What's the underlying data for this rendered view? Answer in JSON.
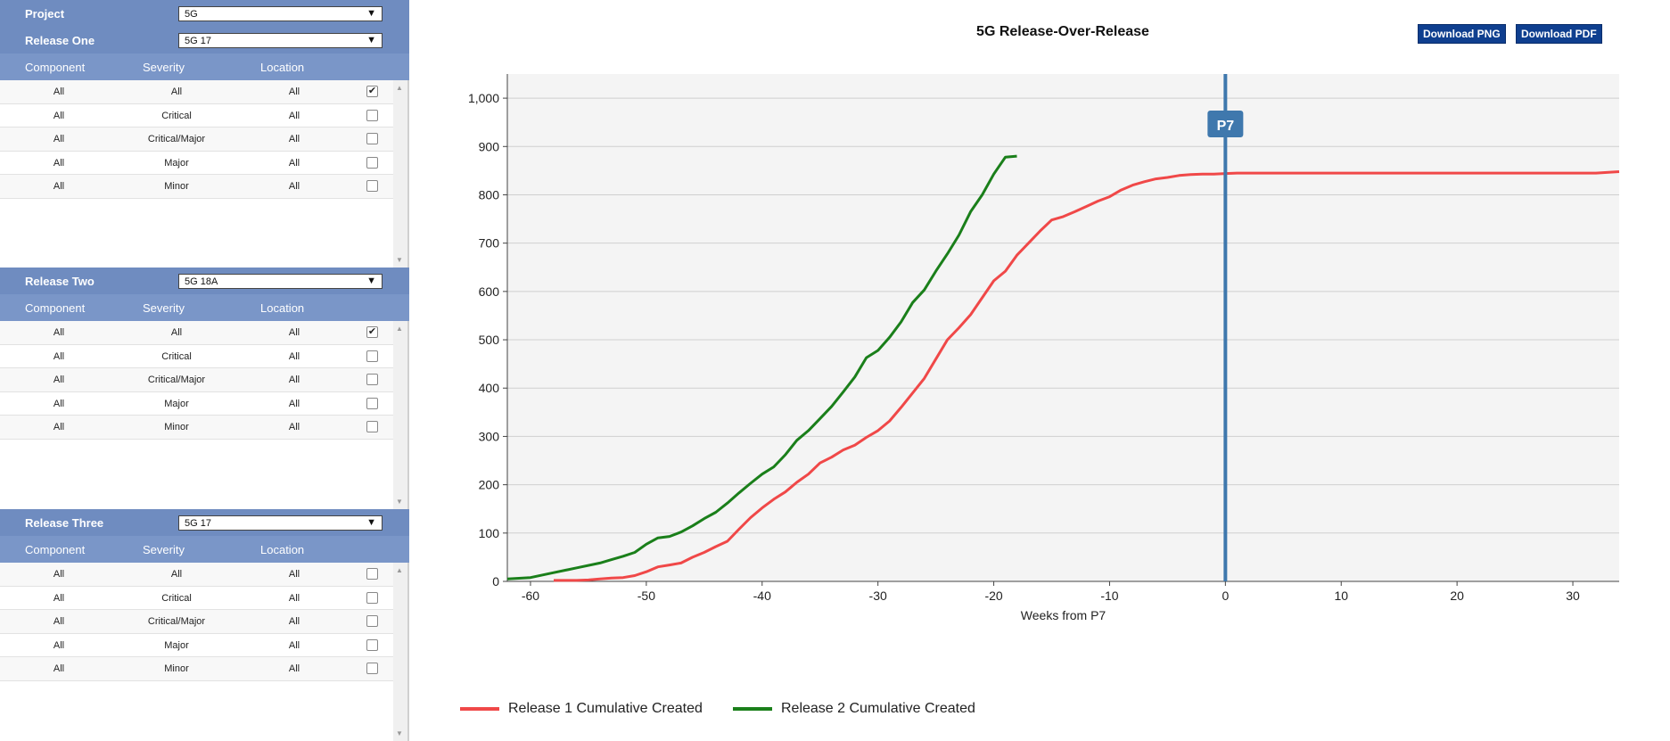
{
  "panel": {
    "project_label": "Project",
    "project_value": "5G",
    "arrow": "▼",
    "sections": [
      {
        "label": "Release One",
        "value": "5G 17",
        "columns": [
          "Component",
          "Severity",
          "Location"
        ],
        "rows": [
          {
            "component": "All",
            "severity": "All",
            "location": "All",
            "checked": true
          },
          {
            "component": "All",
            "severity": "Critical",
            "location": "All",
            "checked": false
          },
          {
            "component": "All",
            "severity": "Critical/Major",
            "location": "All",
            "checked": false
          },
          {
            "component": "All",
            "severity": "Major",
            "location": "All",
            "checked": false
          },
          {
            "component": "All",
            "severity": "Minor",
            "location": "All",
            "checked": false
          }
        ]
      },
      {
        "label": "Release Two",
        "value": "5G 18A",
        "columns": [
          "Component",
          "Severity",
          "Location"
        ],
        "rows": [
          {
            "component": "All",
            "severity": "All",
            "location": "All",
            "checked": true
          },
          {
            "component": "All",
            "severity": "Critical",
            "location": "All",
            "checked": false
          },
          {
            "component": "All",
            "severity": "Critical/Major",
            "location": "All",
            "checked": false
          },
          {
            "component": "All",
            "severity": "Major",
            "location": "All",
            "checked": false
          },
          {
            "component": "All",
            "severity": "Minor",
            "location": "All",
            "checked": false
          }
        ]
      },
      {
        "label": "Release Three",
        "value": "5G 17",
        "columns": [
          "Component",
          "Severity",
          "Location"
        ],
        "rows": [
          {
            "component": "All",
            "severity": "All",
            "location": "All",
            "checked": false
          },
          {
            "component": "All",
            "severity": "Critical",
            "location": "All",
            "checked": false
          },
          {
            "component": "All",
            "severity": "Critical/Major",
            "location": "All",
            "checked": false
          },
          {
            "component": "All",
            "severity": "Major",
            "location": "All",
            "checked": false
          },
          {
            "component": "All",
            "severity": "Minor",
            "location": "All",
            "checked": false
          }
        ]
      }
    ]
  },
  "buttons": {
    "download_png": "Download PNG",
    "download_pdf": "Download PDF"
  },
  "colors": {
    "header_bg": "#6f8cc0",
    "button_bg": "#0f3f8f",
    "release1": "#f04848",
    "release2": "#1a7f1a",
    "marker": "#3f78ad"
  },
  "chart_data": {
    "type": "line",
    "title": "5G Release-Over-Release",
    "xlabel": "Weeks from P7",
    "ylabel": "",
    "xlim": [
      -62,
      34
    ],
    "ylim": [
      0,
      1050
    ],
    "xticks": [
      -60,
      -50,
      -40,
      -30,
      -20,
      -10,
      0,
      10,
      20,
      30
    ],
    "yticks": [
      0,
      100,
      200,
      300,
      400,
      500,
      600,
      700,
      800,
      900,
      1000
    ],
    "ytick_labels": [
      "0",
      "100",
      "200",
      "300",
      "400",
      "500",
      "600",
      "700",
      "800",
      "900",
      "1,000"
    ],
    "grid": true,
    "legend_position": "bottom-left",
    "marker_line": {
      "x": 0,
      "label": "P7"
    },
    "series": [
      {
        "name": "Release 1 Cumulative Created",
        "color": "#f04848",
        "x": [
          -58,
          -56,
          -55,
          -54,
          -53,
          -52,
          -51,
          -50,
          -49,
          -48,
          -47,
          -46,
          -45,
          -44,
          -43,
          -42,
          -41,
          -40,
          -39,
          -38,
          -37,
          -36,
          -35,
          -34,
          -33,
          -32,
          -31,
          -30,
          -29,
          -28,
          -27,
          -26,
          -25,
          -24,
          -23,
          -22,
          -21,
          -20,
          -19,
          -18,
          -17,
          -16,
          -15,
          -14,
          -13,
          -12,
          -11,
          -10,
          -9,
          -8,
          -7,
          -6,
          -5,
          -4,
          -3,
          -2,
          -1,
          0,
          1,
          5,
          10,
          20,
          30,
          32,
          34
        ],
        "y": [
          2,
          2,
          3,
          5,
          7,
          8,
          12,
          20,
          30,
          34,
          38,
          50,
          60,
          72,
          83,
          108,
          132,
          152,
          170,
          185,
          205,
          222,
          245,
          257,
          272,
          282,
          298,
          312,
          332,
          360,
          390,
          420,
          460,
          500,
          525,
          552,
          587,
          622,
          642,
          675,
          700,
          725,
          748,
          755,
          765,
          776,
          787,
          796,
          810,
          820,
          827,
          833,
          836,
          840,
          842,
          843,
          843,
          844,
          845,
          845,
          845,
          845,
          845,
          845,
          848
        ]
      },
      {
        "name": "Release 2 Cumulative Created",
        "color": "#1a7f1a",
        "x": [
          -62,
          -60,
          -58,
          -56,
          -54,
          -53,
          -52,
          -51,
          -50,
          -49,
          -48,
          -47,
          -46,
          -45,
          -44,
          -43,
          -42,
          -41,
          -40,
          -39,
          -38,
          -37,
          -36,
          -35,
          -34,
          -33,
          -32,
          -31,
          -30,
          -29,
          -28,
          -27,
          -26,
          -25,
          -24,
          -23,
          -22,
          -21,
          -20,
          -19,
          -18
        ],
        "y": [
          5,
          8,
          18,
          28,
          38,
          45,
          52,
          60,
          77,
          90,
          93,
          102,
          115,
          130,
          143,
          162,
          183,
          203,
          222,
          237,
          262,
          292,
          312,
          337,
          362,
          392,
          423,
          463,
          478,
          505,
          537,
          577,
          603,
          642,
          678,
          717,
          765,
          800,
          843,
          878,
          880
        ]
      }
    ]
  }
}
